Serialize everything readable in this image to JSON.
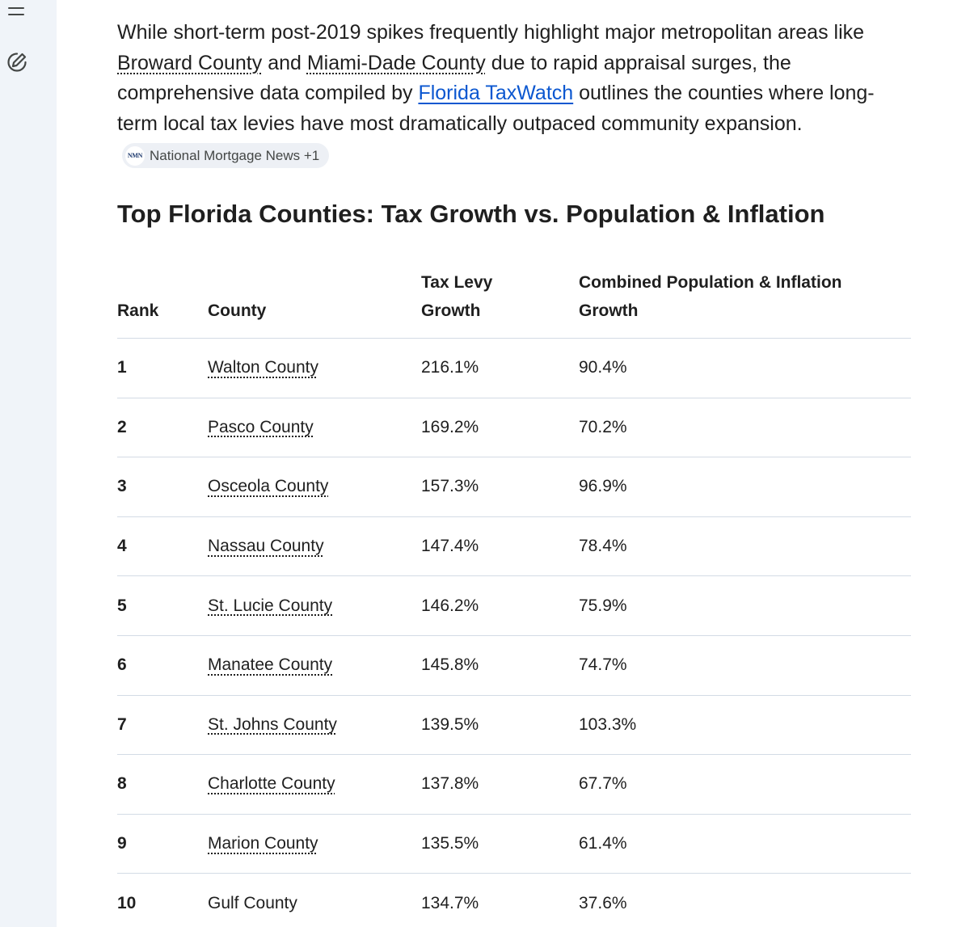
{
  "sidebar": {
    "menu_icon": "hamburger-menu-icon",
    "new_chat_icon": "edit-pen-icon"
  },
  "intro": {
    "part1": "While short-term post-2019 spikes frequently highlight major metropolitan areas like ",
    "link_broward": "Broward County",
    "part2": " and ",
    "link_miami": "Miami-Dade County",
    "part3": " due to rapid appraisal surges, the comprehensive data compiled by ",
    "link_taxwatch": "Florida TaxWatch",
    "part4": " outlines the counties where long-term local tax levies have most dramatically outpaced community expansion.",
    "source_chip": {
      "favicon_text": "NMN",
      "label": "National Mortgage News +1"
    }
  },
  "heading": "Top Florida Counties: Tax Growth vs. Population & Inflation",
  "table": {
    "headers": {
      "rank": "Rank",
      "county": "County",
      "tax": "Tax Levy Growth",
      "combined": "Combined Population & Inflation Growth"
    },
    "rows": [
      {
        "rank": "1",
        "county": "Walton County",
        "tax": "216.1%",
        "combined": "90.4%",
        "linked": true
      },
      {
        "rank": "2",
        "county": "Pasco County",
        "tax": "169.2%",
        "combined": "70.2%",
        "linked": true
      },
      {
        "rank": "3",
        "county": "Osceola County",
        "tax": "157.3%",
        "combined": "96.9%",
        "linked": true
      },
      {
        "rank": "4",
        "county": "Nassau County",
        "tax": "147.4%",
        "combined": "78.4%",
        "linked": true
      },
      {
        "rank": "5",
        "county": "St. Lucie County",
        "tax": "146.2%",
        "combined": "75.9%",
        "linked": true
      },
      {
        "rank": "6",
        "county": "Manatee County",
        "tax": "145.8%",
        "combined": "74.7%",
        "linked": true
      },
      {
        "rank": "7",
        "county": "St. Johns County",
        "tax": "139.5%",
        "combined": "103.3%",
        "linked": true
      },
      {
        "rank": "8",
        "county": "Charlotte County",
        "tax": "137.8%",
        "combined": "67.7%",
        "linked": true
      },
      {
        "rank": "9",
        "county": "Marion County",
        "tax": "135.5%",
        "combined": "61.4%",
        "linked": true
      },
      {
        "rank": "10",
        "county": "Gulf County",
        "tax": "134.7%",
        "combined": "37.6%",
        "linked": false
      }
    ]
  }
}
